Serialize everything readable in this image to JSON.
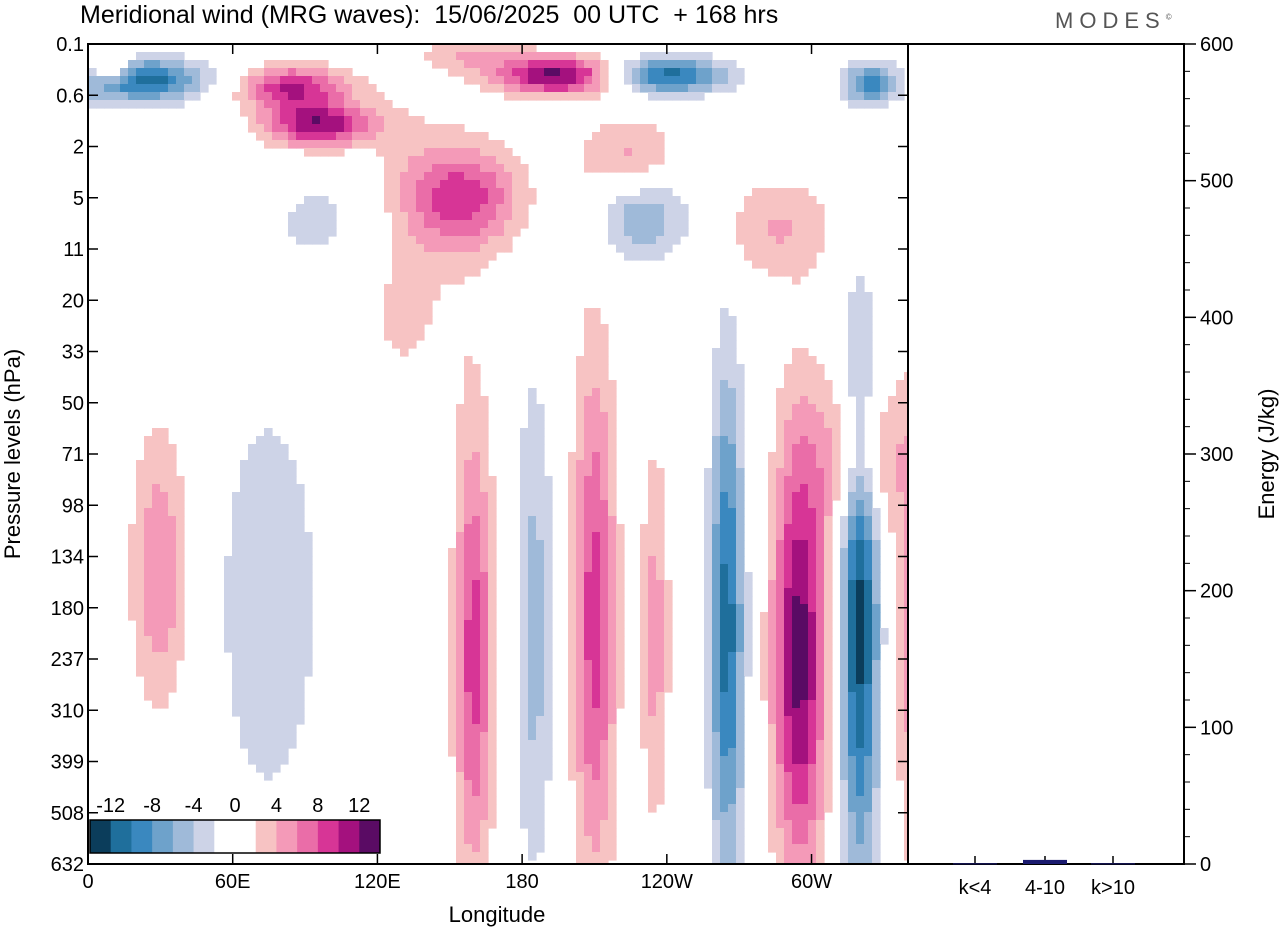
{
  "title": "Meridional wind (MRG waves):  15/06/2025  00 UTC  + 168 hrs",
  "logo": "MODES",
  "logo_mark": "©",
  "colors": {
    "neg": [
      "#0b3d5b",
      "#1f6f9c",
      "#3a88bf",
      "#6ea2cb",
      "#9fbad9",
      "#cdd3e7"
    ],
    "zero": "#ffffff",
    "pos": [
      "#f7c3c3",
      "#f49ab8",
      "#ea6da8",
      "#d73596",
      "#a4117e",
      "#5a0b64"
    ],
    "energy_bar": "#1a1a6e"
  },
  "chart_data": [
    {
      "type": "heatmap",
      "xlabel": "Longitude",
      "ylabel": "Pressure levels (hPa)",
      "x_ticks": [
        "0",
        "60E",
        "120E",
        "180",
        "120W",
        "60W"
      ],
      "x_tick_values": [
        0,
        60,
        120,
        180,
        240,
        300
      ],
      "xlim": [
        0,
        340
      ],
      "y_ticks": [
        "0.1",
        "0.6",
        "2",
        "5",
        "11",
        "20",
        "33",
        "50",
        "71",
        "98",
        "134",
        "180",
        "237",
        "310",
        "399",
        "508",
        "632"
      ],
      "colorbar_labels": [
        "-12",
        "-8",
        "-4",
        "0",
        "4",
        "8",
        "12"
      ],
      "colorbar_levels": [
        -12,
        -8,
        -4,
        0,
        4,
        8,
        12
      ],
      "features": [
        {
          "lon": 20,
          "lev": 0.35,
          "v": -12,
          "rx": 28,
          "ry": 0.9
        },
        {
          "lon": 10,
          "lev": 0.25,
          "v": 9,
          "rx": 8,
          "ry": 0.4
        },
        {
          "lon": 85,
          "lev": 0.45,
          "v": 10,
          "rx": 22,
          "ry": 0.9
        },
        {
          "lon": 95,
          "lev": 1.2,
          "v": 12,
          "rx": 22,
          "ry": 0.7
        },
        {
          "lon": 160,
          "lev": 0.15,
          "v": 4,
          "rx": 20,
          "ry": 0.5
        },
        {
          "lon": 195,
          "lev": 0.3,
          "v": 13,
          "rx": 25,
          "ry": 0.7
        },
        {
          "lon": 240,
          "lev": 0.3,
          "v": -11,
          "rx": 25,
          "ry": 0.6
        },
        {
          "lon": 325,
          "lev": 0.4,
          "v": -9,
          "rx": 12,
          "ry": 0.8
        },
        {
          "lon": 155,
          "lev": 5.0,
          "v": 9,
          "rx": 25,
          "ry": 1.8
        },
        {
          "lon": 130,
          "lev": 12.0,
          "v": 3,
          "rx": 25,
          "ry": 4.0
        },
        {
          "lon": 110,
          "lev": 7.0,
          "v": -3,
          "rx": 35,
          "ry": 2.0
        },
        {
          "lon": 225,
          "lev": 2.5,
          "v": 5,
          "rx": 20,
          "ry": 1.5
        },
        {
          "lon": 230,
          "lev": 6.5,
          "v": -6,
          "rx": 20,
          "ry": 1.5
        },
        {
          "lon": 285,
          "lev": 8.0,
          "v": 4,
          "rx": 25,
          "ry": 1.5
        },
        {
          "lon": 320,
          "lev": 72.0,
          "v": 6,
          "rx": 18,
          "ry": 1.2
        },
        {
          "lon": 30,
          "lev": 145.0,
          "v": 6,
          "rx": 12,
          "ry": 2.0
        },
        {
          "lon": 75,
          "lev": 175.0,
          "v": -3,
          "rx": 28,
          "ry": 4.0
        },
        {
          "lon": 160,
          "lev": 230.0,
          "v": 9,
          "rx": 8,
          "ry": 5.0
        },
        {
          "lon": 185,
          "lev": 200.0,
          "v": -5,
          "rx": 8,
          "ry": 4.0
        },
        {
          "lon": 210,
          "lev": 190.0,
          "v": 9,
          "rx": 9,
          "ry": 4.0
        },
        {
          "lon": 235,
          "lev": 210.0,
          "v": 5,
          "rx": 6,
          "ry": 2.5
        },
        {
          "lon": 265,
          "lev": 200.0,
          "v": -11,
          "rx": 7,
          "ry": 3.5
        },
        {
          "lon": 295,
          "lev": 230.0,
          "v": 13,
          "rx": 11,
          "ry": 4.0
        },
        {
          "lon": 320,
          "lev": 190.0,
          "v": -13,
          "rx": 8,
          "ry": 4.0
        },
        {
          "lon": 345,
          "lev": 210.0,
          "v": 6,
          "rx": 10,
          "ry": 3.5
        }
      ]
    },
    {
      "type": "bar",
      "ylabel": "Energy (J/kg)",
      "categories": [
        "k<4",
        "4-10",
        "k>10"
      ],
      "values": [
        0.5,
        3,
        0.5
      ],
      "ylim": [
        0,
        600
      ],
      "y_ticks": [
        "0",
        "100",
        "200",
        "300",
        "400",
        "500",
        "600"
      ]
    }
  ]
}
